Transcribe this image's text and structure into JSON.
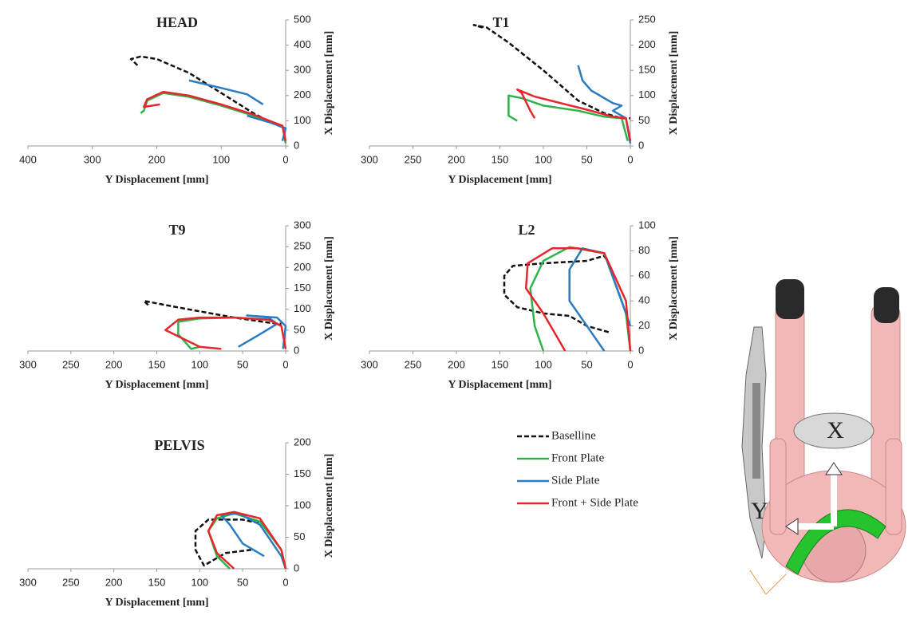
{
  "chart_data": [
    {
      "type": "line",
      "title": "HEAD",
      "xlabel": "Y Displacement [mm]",
      "ylabel": "X Displacement [mm]",
      "xlim": [
        400,
        0
      ],
      "ylim": [
        0,
        500
      ],
      "xticks": [
        400,
        300,
        200,
        100,
        0
      ],
      "yticks": [
        0,
        100,
        200,
        300,
        400,
        500
      ],
      "series": [
        {
          "name": "Baselline",
          "color": "#111111",
          "style": "dashed",
          "x": [
            230,
            240,
            225,
            200,
            150,
            100,
            50,
            20,
            0
          ],
          "values": [
            320,
            345,
            355,
            345,
            290,
            210,
            130,
            90,
            70
          ]
        },
        {
          "name": "Front Plate",
          "color": "#2db34a",
          "style": "solid",
          "x": [
            225,
            220,
            215,
            190,
            150,
            100,
            50,
            20,
            5,
            0
          ],
          "values": [
            130,
            140,
            180,
            210,
            195,
            160,
            120,
            95,
            80,
            10
          ]
        },
        {
          "name": "Side Plate",
          "color": "#2a7bbf",
          "style": "solid",
          "x": [
            150,
            100,
            60,
            35,
            null,
            60,
            20,
            0,
            5
          ],
          "values": [
            260,
            230,
            205,
            165,
            null,
            120,
            90,
            70,
            20
          ]
        },
        {
          "name": "Front + Side Plate",
          "color": "#e8252a",
          "style": "solid",
          "x": [
            195,
            220,
            215,
            190,
            150,
            100,
            50,
            20,
            5,
            0
          ],
          "values": [
            165,
            155,
            185,
            215,
            200,
            165,
            125,
            95,
            80,
            20
          ]
        }
      ]
    },
    {
      "type": "line",
      "title": "T1",
      "xlabel": "Y Displacement [mm]",
      "ylabel": "X Displacement [mm]",
      "xlim": [
        300,
        0
      ],
      "ylim": [
        0,
        250
      ],
      "xticks": [
        300,
        250,
        200,
        150,
        100,
        50,
        0
      ],
      "yticks": [
        0,
        50,
        100,
        150,
        200,
        250
      ],
      "series": [
        {
          "color": "#111111",
          "style": "dashed",
          "x": [
            170,
            180,
            165,
            140,
            100,
            60,
            30,
            10,
            0
          ],
          "values": [
            235,
            240,
            235,
            205,
            150,
            90,
            65,
            55,
            55
          ]
        },
        {
          "color": "#2db34a",
          "style": "solid",
          "x": [
            130,
            140,
            140,
            125,
            100,
            60,
            30,
            10,
            3
          ],
          "values": [
            50,
            60,
            100,
            95,
            80,
            70,
            58,
            55,
            10
          ]
        },
        {
          "color": "#2a7bbf",
          "style": "solid",
          "x": [
            60,
            55,
            45,
            20,
            10,
            20,
            5,
            0
          ],
          "values": [
            160,
            130,
            110,
            85,
            80,
            70,
            55,
            5
          ]
        },
        {
          "color": "#e8252a",
          "style": "solid",
          "x": [
            110,
            115,
            125,
            130,
            110,
            80,
            50,
            20,
            5,
            0
          ],
          "values": [
            55,
            70,
            105,
            112,
            98,
            85,
            72,
            58,
            55,
            10
          ]
        }
      ]
    },
    {
      "type": "line",
      "title": "T9",
      "xlabel": "Y Displacement [mm]",
      "ylabel": "X Displacement [mm]",
      "xlim": [
        300,
        0
      ],
      "ylim": [
        0,
        300
      ],
      "xticks": [
        300,
        250,
        200,
        150,
        100,
        50,
        0
      ],
      "yticks": [
        0,
        50,
        100,
        150,
        200,
        250,
        300
      ],
      "series": [
        {
          "color": "#111111",
          "style": "dashed",
          "x": [
            160,
            165,
            140,
            100,
            60,
            20,
            5
          ],
          "values": [
            110,
            120,
            110,
            95,
            80,
            68,
            65
          ]
        },
        {
          "color": "#2db34a",
          "style": "solid",
          "x": [
            100,
            110,
            125,
            125,
            100,
            60,
            20,
            5
          ],
          "values": [
            10,
            5,
            40,
            70,
            78,
            80,
            75,
            60
          ]
        },
        {
          "color": "#2a7bbf",
          "style": "solid",
          "x": [
            55,
            30,
            10,
            20,
            45,
            10,
            0,
            3
          ],
          "values": [
            10,
            40,
            65,
            80,
            85,
            80,
            60,
            5
          ]
        },
        {
          "color": "#e8252a",
          "style": "solid",
          "x": [
            75,
            100,
            140,
            125,
            100,
            60,
            20,
            5,
            0
          ],
          "values": [
            5,
            10,
            50,
            75,
            80,
            80,
            75,
            60,
            5
          ]
        }
      ]
    },
    {
      "type": "line",
      "title": "L2",
      "xlabel": "Y Displacement [mm]",
      "ylabel": "X Displacement [mm]",
      "xlim": [
        300,
        0
      ],
      "ylim": [
        0,
        100
      ],
      "xticks": [
        300,
        250,
        200,
        150,
        100,
        50,
        0
      ],
      "yticks": [
        0,
        20,
        40,
        60,
        80,
        100
      ],
      "series": [
        {
          "color": "#111111",
          "style": "dashed",
          "x": [
            25,
            50,
            70,
            100,
            130,
            145,
            145,
            135,
            100,
            50,
            30,
            25
          ],
          "values": [
            15,
            20,
            28,
            30,
            35,
            45,
            60,
            68,
            70,
            72,
            76,
            70
          ]
        },
        {
          "color": "#2db34a",
          "style": "solid",
          "x": [
            100,
            110,
            115,
            100,
            70,
            30,
            5,
            0
          ],
          "values": [
            0,
            20,
            50,
            72,
            83,
            78,
            30,
            0
          ]
        },
        {
          "color": "#2a7bbf",
          "style": "solid",
          "x": [
            30,
            45,
            70,
            70,
            55,
            30,
            10,
            0
          ],
          "values": [
            0,
            15,
            40,
            65,
            82,
            78,
            40,
            20
          ]
        },
        {
          "color": "#e8252a",
          "style": "solid",
          "x": [
            75,
            100,
            120,
            118,
            90,
            60,
            30,
            5,
            0
          ],
          "values": [
            0,
            30,
            50,
            70,
            82,
            82,
            78,
            40,
            0
          ]
        }
      ]
    },
    {
      "type": "line",
      "title": "PELVIS",
      "xlabel": "Y Displacement [mm]",
      "ylabel": "X Displacement [mm]",
      "xlim": [
        300,
        0
      ],
      "ylim": [
        0,
        200
      ],
      "xticks": [
        300,
        250,
        200,
        150,
        100,
        50,
        0
      ],
      "yticks": [
        0,
        50,
        100,
        150,
        200
      ],
      "series": [
        {
          "color": "#111111",
          "style": "dashed",
          "x": [
            40,
            70,
            95,
            105,
            105,
            90,
            50,
            30
          ],
          "values": [
            30,
            25,
            5,
            30,
            60,
            78,
            78,
            72
          ]
        },
        {
          "color": "#2db34a",
          "style": "solid",
          "x": [
            65,
            80,
            90,
            80,
            60,
            30,
            5,
            0
          ],
          "values": [
            0,
            20,
            60,
            80,
            88,
            75,
            30,
            0
          ]
        },
        {
          "color": "#2a7bbf",
          "style": "solid",
          "x": [
            25,
            50,
            65,
            75,
            55,
            30,
            5,
            0
          ],
          "values": [
            20,
            40,
            70,
            85,
            88,
            70,
            20,
            0
          ]
        },
        {
          "color": "#e8252a",
          "style": "solid",
          "x": [
            60,
            80,
            90,
            80,
            60,
            30,
            5,
            0
          ],
          "values": [
            0,
            25,
            60,
            85,
            90,
            80,
            30,
            0
          ]
        }
      ]
    }
  ],
  "illustration": {
    "labels": [
      "X",
      "Y"
    ]
  }
}
